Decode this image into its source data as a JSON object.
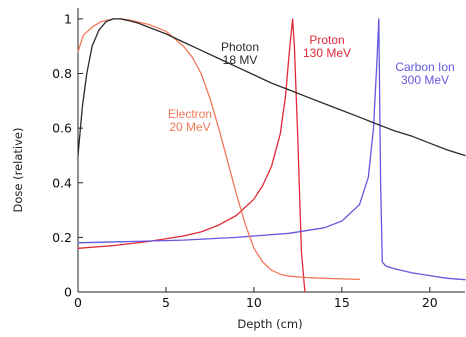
{
  "chart_data": {
    "type": "line",
    "title": "",
    "xlabel": "Depth (cm)",
    "ylabel": "Dose (relative)",
    "xlim": [
      0,
      22
    ],
    "ylim": [
      0,
      1.04
    ],
    "xticks": [
      "0",
      "5",
      "10",
      "15",
      "20"
    ],
    "yticks": [
      "0",
      "0.2",
      "0.4",
      "0.6",
      "0.8",
      "1"
    ],
    "grid": false,
    "legend": "none (direct labels)",
    "series": [
      {
        "name": "Photon 18 MV",
        "color": "#2b2b2b",
        "label_lines": [
          "Photon",
          "18 MV"
        ],
        "x": [
          0,
          0.25,
          0.5,
          0.8,
          1.2,
          1.6,
          2.0,
          2.4,
          2.8,
          3.4,
          4.0,
          5.0,
          6.0,
          7.0,
          8.0,
          9.0,
          10.0,
          11.0,
          12.0,
          13.0,
          14.0,
          15.0,
          16.0,
          17.0,
          18.0,
          19.0,
          20.0,
          21.0,
          22.0
        ],
        "y": [
          0.5,
          0.68,
          0.8,
          0.9,
          0.96,
          0.99,
          1.0,
          1.0,
          0.995,
          0.985,
          0.97,
          0.945,
          0.915,
          0.885,
          0.855,
          0.825,
          0.795,
          0.765,
          0.74,
          0.715,
          0.69,
          0.665,
          0.64,
          0.615,
          0.59,
          0.57,
          0.545,
          0.52,
          0.5
        ]
      },
      {
        "name": "Electron 20 MeV",
        "color": "#f07858",
        "label_lines": [
          "Electron",
          "20 MeV"
        ],
        "x": [
          0,
          0.3,
          0.8,
          1.3,
          2.0,
          2.5,
          3.0,
          4.0,
          5.0,
          6.0,
          6.5,
          7.0,
          7.5,
          8.0,
          8.5,
          9.0,
          9.5,
          10.0,
          10.5,
          11.0,
          11.5,
          12.0,
          13.0,
          14.0,
          15.0,
          16.0
        ],
        "y": [
          0.88,
          0.94,
          0.97,
          0.99,
          1.0,
          1.0,
          0.995,
          0.98,
          0.955,
          0.9,
          0.86,
          0.8,
          0.71,
          0.6,
          0.48,
          0.36,
          0.25,
          0.16,
          0.11,
          0.08,
          0.065,
          0.058,
          0.053,
          0.05,
          0.048,
          0.046
        ]
      },
      {
        "name": "Proton 130 MeV",
        "color": "#e02838",
        "label_lines": [
          "Proton",
          "130 MeV"
        ],
        "x": [
          0,
          2,
          4,
          6,
          7,
          8,
          9,
          10,
          10.5,
          11.0,
          11.5,
          11.8,
          12.0,
          12.2,
          12.3,
          12.5,
          12.7,
          12.9
        ],
        "y": [
          0.16,
          0.17,
          0.185,
          0.205,
          0.22,
          0.245,
          0.28,
          0.34,
          0.39,
          0.46,
          0.58,
          0.72,
          0.87,
          1.0,
          0.9,
          0.55,
          0.15,
          0.0
        ]
      },
      {
        "name": "Carbon Ion 300 MeV",
        "color": "#6458e0",
        "label_lines": [
          "Carbon Ion",
          "300 MeV"
        ],
        "x": [
          0,
          3,
          6,
          9,
          12,
          14,
          15,
          16,
          16.5,
          16.8,
          17.0,
          17.1,
          17.2,
          17.3,
          17.5,
          18.0,
          19.0,
          20.0,
          21.0,
          22.0
        ],
        "y": [
          0.18,
          0.185,
          0.19,
          0.2,
          0.215,
          0.235,
          0.26,
          0.32,
          0.42,
          0.6,
          0.85,
          1.0,
          0.4,
          0.11,
          0.095,
          0.085,
          0.07,
          0.06,
          0.05,
          0.045
        ]
      }
    ]
  }
}
